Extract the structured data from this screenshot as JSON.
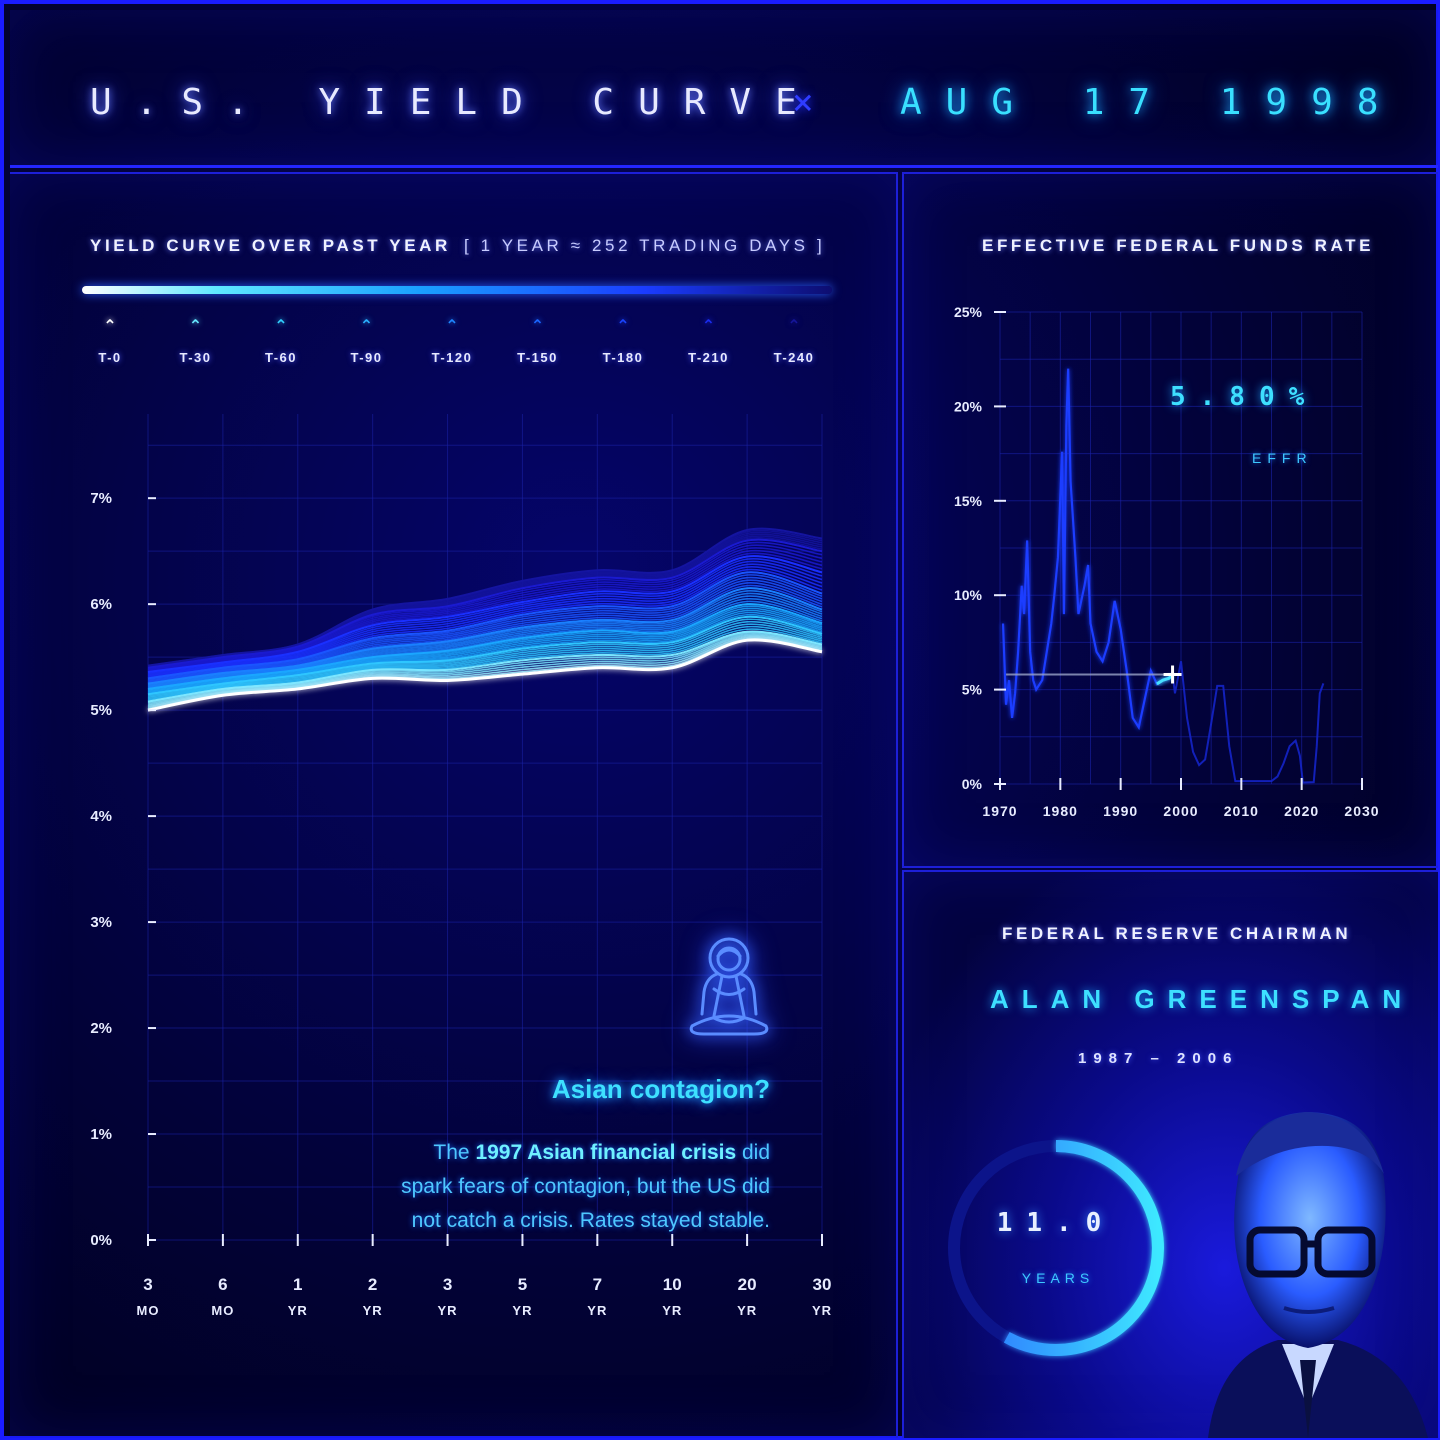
{
  "header": {
    "title": "U.S. YIELD CURVE",
    "separator": "×",
    "date": "AUG 17 1998"
  },
  "yield_panel": {
    "title": "YIELD CURVE OVER PAST YEAR",
    "note": "[ 1 YEAR ≈ 252 TRADING DAYS ]",
    "legend": [
      "T-0",
      "T-30",
      "T-60",
      "T-90",
      "T-120",
      "T-150",
      "T-180",
      "T-210",
      "T-240"
    ],
    "legend_colors": [
      "#ffffff",
      "#66e8ff",
      "#33d0ff",
      "#2ab0ff",
      "#1f86ff",
      "#1a66ff",
      "#1a44ff",
      "#1a2cee",
      "#15159a"
    ],
    "annotation": {
      "heading": "Asian contagion?",
      "line1_pre": "The ",
      "line1_bold": "1997 Asian financial crisis",
      "line1_post": " did",
      "line2": "spark fears of contagion, but the US did",
      "line3": "not catch a crisis. Rates stayed stable.",
      "icon": "meditating-buddha-icon"
    }
  },
  "effr_panel": {
    "title": "EFFECTIVE FEDERAL FUNDS RATE",
    "value": "5.80%",
    "value_label": "EFFR"
  },
  "chair_panel": {
    "title": "FEDERAL RESERVE CHAIRMAN",
    "name": "ALAN GREENSPAN",
    "term": "1987 – 2006",
    "years_value": "11.0",
    "years_label": "YEARS",
    "tenure_fraction": 0.58,
    "portrait_icon": "portrait-icon"
  },
  "chart_data": [
    {
      "type": "line",
      "title": "YIELD CURVE OVER PAST YEAR",
      "x": [
        "3 MO",
        "6 MO",
        "1 YR",
        "2 YR",
        "3 YR",
        "5 YR",
        "7 YR",
        "10 YR",
        "20 YR",
        "30 YR"
      ],
      "x_tick_top": [
        "3",
        "6",
        "1",
        "2",
        "3",
        "5",
        "7",
        "10",
        "20",
        "30"
      ],
      "x_tick_bottom": [
        "MO",
        "MO",
        "YR",
        "YR",
        "YR",
        "YR",
        "YR",
        "YR",
        "YR",
        "YR"
      ],
      "y_ticks": [
        "0%",
        "1%",
        "2%",
        "3%",
        "4%",
        "5%",
        "6%",
        "7%"
      ],
      "ylim": [
        0,
        7.7
      ],
      "series": [
        {
          "label": "T-240",
          "values": [
            5.42,
            5.52,
            5.62,
            5.95,
            6.05,
            6.22,
            6.32,
            6.32,
            6.7,
            6.62
          ]
        },
        {
          "label": "T-210",
          "values": [
            5.4,
            5.5,
            5.6,
            5.9,
            5.98,
            6.15,
            6.25,
            6.25,
            6.6,
            6.5
          ]
        },
        {
          "label": "T-180",
          "values": [
            5.36,
            5.45,
            5.55,
            5.8,
            5.88,
            6.02,
            6.12,
            6.12,
            6.45,
            6.3
          ]
        },
        {
          "label": "T-150",
          "values": [
            5.3,
            5.4,
            5.48,
            5.68,
            5.75,
            5.9,
            5.98,
            5.98,
            6.3,
            6.1
          ]
        },
        {
          "label": "T-120",
          "values": [
            5.25,
            5.35,
            5.42,
            5.58,
            5.65,
            5.78,
            5.85,
            5.85,
            6.15,
            5.95
          ]
        },
        {
          "label": "T-90",
          "values": [
            5.2,
            5.3,
            5.38,
            5.5,
            5.56,
            5.68,
            5.75,
            5.74,
            6.0,
            5.82
          ]
        },
        {
          "label": "T-60",
          "values": [
            5.15,
            5.25,
            5.33,
            5.44,
            5.47,
            5.58,
            5.64,
            5.64,
            5.88,
            5.72
          ]
        },
        {
          "label": "T-30",
          "values": [
            5.08,
            5.2,
            5.26,
            5.38,
            5.38,
            5.47,
            5.52,
            5.52,
            5.74,
            5.62
          ]
        },
        {
          "label": "T-0",
          "values": [
            5.0,
            5.14,
            5.2,
            5.3,
            5.28,
            5.34,
            5.4,
            5.4,
            5.66,
            5.55
          ]
        }
      ]
    },
    {
      "type": "line",
      "title": "EFFECTIVE FEDERAL FUNDS RATE",
      "x_ticks": [
        1970,
        1980,
        1990,
        2000,
        2010,
        2020,
        2030
      ],
      "y_ticks": [
        "0%",
        "5%",
        "10%",
        "15%",
        "20%",
        "25%"
      ],
      "xlim": [
        1970,
        2030
      ],
      "ylim": [
        0,
        25
      ],
      "current": {
        "x": 1998.6,
        "y": 5.8
      },
      "series": [
        {
          "label": "EFFR",
          "points": [
            [
              1970.5,
              8.5
            ],
            [
              1971,
              4.2
            ],
            [
              1971.5,
              5.5
            ],
            [
              1972,
              3.5
            ],
            [
              1972.5,
              4.8
            ],
            [
              1973,
              7
            ],
            [
              1973.6,
              10.5
            ],
            [
              1974,
              9
            ],
            [
              1974.5,
              12.9
            ],
            [
              1975,
              7
            ],
            [
              1975.5,
              5.5
            ],
            [
              1976,
              5
            ],
            [
              1977,
              5.5
            ],
            [
              1977.5,
              6.5
            ],
            [
              1978,
              7.5
            ],
            [
              1978.5,
              8.5
            ],
            [
              1979,
              10
            ],
            [
              1979.6,
              12
            ],
            [
              1980.3,
              17.6
            ],
            [
              1980.6,
              9
            ],
            [
              1981,
              19
            ],
            [
              1981.3,
              22
            ],
            [
              1981.7,
              16
            ],
            [
              1982,
              14.5
            ],
            [
              1982.5,
              12
            ],
            [
              1983,
              9
            ],
            [
              1984,
              10.5
            ],
            [
              1984.6,
              11.6
            ],
            [
              1985,
              8.5
            ],
            [
              1986,
              7
            ],
            [
              1987,
              6.5
            ],
            [
              1988,
              7.5
            ],
            [
              1989,
              9.7
            ],
            [
              1989.8,
              8.5
            ],
            [
              1990,
              8.2
            ],
            [
              1991,
              6
            ],
            [
              1992,
              3.5
            ],
            [
              1993,
              3
            ],
            [
              1994,
              4.5
            ],
            [
              1995,
              6
            ],
            [
              1996,
              5.3
            ],
            [
              1997,
              5.5
            ],
            [
              1998,
              5.6
            ],
            [
              1998.6,
              5.8
            ]
          ]
        },
        {
          "label": "EFFR-future",
          "points": [
            [
              1998.6,
              5.8
            ],
            [
              1999,
              4.8
            ],
            [
              2000,
              6.5
            ],
            [
              2001,
              3.5
            ],
            [
              2002,
              1.7
            ],
            [
              2003,
              1.0
            ],
            [
              2004,
              1.3
            ],
            [
              2005,
              3.2
            ],
            [
              2006,
              5.2
            ],
            [
              2007,
              5.2
            ],
            [
              2008,
              2
            ],
            [
              2009,
              0.15
            ],
            [
              2015,
              0.15
            ],
            [
              2016,
              0.4
            ],
            [
              2017,
              1.1
            ],
            [
              2018,
              2.0
            ],
            [
              2019,
              2.3
            ],
            [
              2019.7,
              1.5
            ],
            [
              2020.2,
              0.08
            ],
            [
              2022,
              0.1
            ],
            [
              2022.5,
              2
            ],
            [
              2023,
              4.8
            ],
            [
              2023.6,
              5.33
            ]
          ]
        }
      ]
    }
  ]
}
